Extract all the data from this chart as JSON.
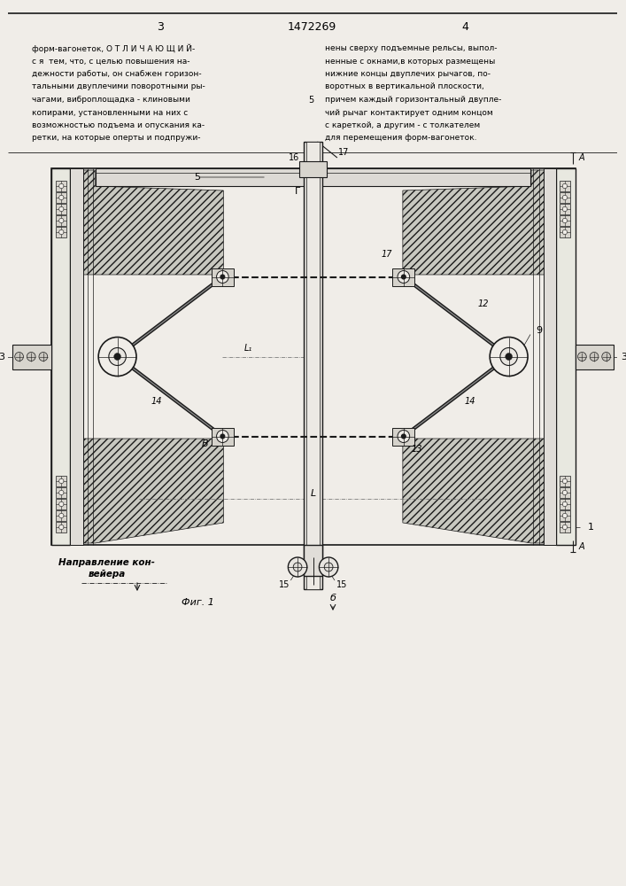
{
  "bg_color": "#f0ede8",
  "line_color": "#1a1a1a",
  "page_number_left": "3",
  "page_number_center": "1472269",
  "page_number_right": "4",
  "text_left_col": [
    "форм-вагонеток, О Т Л И Ч А Ю Щ И Й-",
    "с я  тем, что, с целью повышения на-",
    "дежности работы, он снабжен горизон-",
    "тальными двуплечими поворотными ры-",
    "чагами, виброплощадка - клиновыми",
    "копирами, установленными на них с",
    "возможностью подъема и опускания ка-",
    "ретки, на которые оперты и подпружи-"
  ],
  "text_right_col": [
    "нены сверху подъемные рельсы, выпол-",
    "ненные с окнами,в которых размещены",
    "нижние концы двуплечих рычагов, по-",
    "воротных в вертикальной плоскости,",
    "причем каждый горизонтальный двупле-",
    "чий рычаг контактирует одним концом",
    "с кареткой, а другим - с толкателем",
    "для перемещения форм-вагонеток."
  ],
  "ref_num_5": "5",
  "drawing_title": "Фиг. 1",
  "direction_label_1": "Направление кон-",
  "direction_label_2": "вейера"
}
